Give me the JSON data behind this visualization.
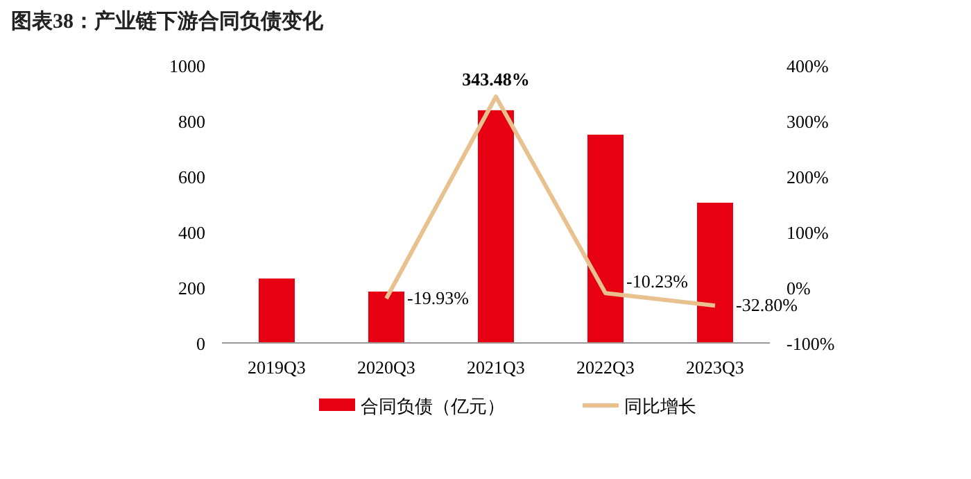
{
  "chart_data": {
    "type": "bar",
    "title": "图表38：产业链下游合同负债变化",
    "categories": [
      "2019Q3",
      "2020Q3",
      "2021Q3",
      "2022Q3",
      "2023Q3"
    ],
    "series": [
      {
        "name": "合同负债（亿元）",
        "color": "#e60012",
        "values": [
          232,
          185,
          838,
          750,
          505
        ]
      },
      {
        "name": "同比增长",
        "type": "line",
        "axis": "y2",
        "color": "#e8c18e",
        "values": [
          null,
          -19.93,
          343.48,
          -10.23,
          -32.8
        ],
        "value_labels": [
          null,
          "-19.93%",
          "343.48%",
          "-10.23%",
          "-32.80%"
        ]
      }
    ],
    "ylim": [
      0,
      1000
    ],
    "yticks": [
      0,
      200,
      400,
      600,
      800,
      1000
    ],
    "y2lim": [
      -100,
      400
    ],
    "y2ticks": [
      {
        "value": -100,
        "label": "-100%"
      },
      {
        "value": 0,
        "label": "0%"
      },
      {
        "value": 100,
        "label": "100%"
      },
      {
        "value": 200,
        "label": "200%"
      },
      {
        "value": 300,
        "label": "300%"
      },
      {
        "value": 400,
        "label": "400%"
      }
    ],
    "legend": "bottom",
    "grid": false
  }
}
